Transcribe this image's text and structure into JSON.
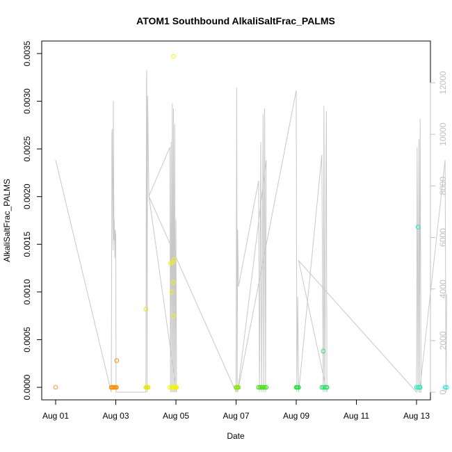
{
  "chart_data": {
    "type": "scatter",
    "title": "ATOM1 Southbound AlkaliSaltFrac_PALMS",
    "xlabel": "Date",
    "ylabel": "AlkaliSaltFrac_PALMS",
    "xlim": [
      "2016-08-01",
      "2016-08-13"
    ],
    "ylim": [
      0,
      0.0035
    ],
    "x_ticks": [
      "Aug 01",
      "Aug 03",
      "Aug 05",
      "Aug 07",
      "Aug 09",
      "Aug 11",
      "Aug 13"
    ],
    "y_ticks": [
      "0.0000",
      "0.0005",
      "0.0010",
      "0.0015",
      "0.0020",
      "0.0025",
      "0.0030",
      "0.0035"
    ],
    "y2_ticks": [
      "0",
      "2000",
      "4000",
      "6000",
      "8000",
      "10000",
      "12000"
    ],
    "y2lim": [
      0,
      12000
    ],
    "grid": false,
    "series": [
      {
        "role": "points",
        "x": [
          0.0,
          1.85,
          1.88,
          1.91,
          1.94,
          1.97,
          2.0,
          2.02,
          3.0,
          3.02,
          3.05,
          3.08,
          3.8,
          3.85,
          3.9,
          3.93,
          3.96,
          3.98,
          4.0,
          4.02,
          6.0,
          6.02,
          6.05,
          6.08,
          6.75,
          6.8,
          6.85,
          6.9,
          6.95,
          7.0,
          8.0,
          8.02,
          8.05,
          8.08,
          8.85,
          8.9,
          8.95,
          9.0,
          9.02,
          12.0,
          12.05,
          12.1,
          12.12,
          12.95,
          13.0,
          2.03,
          3.0,
          3.92,
          3.82,
          3.95,
          3.88,
          3.86,
          3.91,
          3.93,
          8.9,
          12.05
        ],
        "y": [
          0,
          0,
          0,
          0,
          0,
          0,
          0,
          0,
          0,
          0,
          0,
          0,
          0,
          0,
          0,
          0,
          0,
          0,
          0,
          0,
          0,
          0,
          0,
          0,
          0,
          0,
          0,
          0,
          0,
          0,
          0,
          0,
          0,
          0,
          0,
          0,
          0,
          0,
          0,
          0,
          0,
          0,
          0,
          0,
          0,
          0.00028,
          0.00082,
          0.00347,
          0.0013,
          0.00134,
          0.00131,
          0.001,
          0.0011,
          0.00075,
          0.00038,
          0.00168
        ]
      },
      {
        "role": "secondary-line",
        "axis": "right",
        "x": [
          0.0,
          1.85,
          1.86,
          1.87,
          1.88,
          1.9,
          1.91,
          1.92,
          1.94,
          1.95,
          1.97,
          1.98,
          2.0,
          2.01,
          3.0,
          3.02,
          3.03,
          3.04,
          3.06,
          3.1,
          3.8,
          3.82,
          3.84,
          3.86,
          3.88,
          3.9,
          3.92,
          3.94,
          3.96,
          3.98,
          4.0,
          4.02,
          3.1,
          6.0,
          6.02,
          6.04,
          6.05,
          6.08,
          6.75,
          6.78,
          6.82,
          6.85,
          6.9,
          6.92,
          6.95,
          6.98,
          7.0,
          6.05,
          8.0,
          8.02,
          8.05,
          8.08,
          8.85,
          8.9,
          8.92,
          8.95,
          9.0,
          9.02,
          8.08,
          12.0,
          12.02,
          12.05,
          12.08,
          12.1,
          12.12,
          12.15,
          12.1,
          12.95,
          12.98,
          13.0
        ],
        "y": [
          9000,
          0,
          3200,
          10000,
          10200,
          6500,
          5500,
          11300,
          5900,
          6700,
          5200,
          6300,
          6100,
          0,
          0,
          11800,
          12500,
          0,
          11500,
          7600,
          9500,
          0,
          9700,
          0,
          11200,
          0,
          11000,
          0,
          10400,
          0,
          6700,
          0,
          7600,
          0,
          11800,
          0,
          6300,
          4100,
          8200,
          0,
          9700,
          0,
          10800,
          0,
          11000,
          0,
          9000,
          0,
          11700,
          0,
          3700,
          0,
          9200,
          0,
          11100,
          0,
          10900,
          0,
          5100,
          0,
          9500,
          0,
          9800,
          0,
          10600,
          0,
          0,
          9000,
          0,
          3800
        ]
      }
    ],
    "point_colors": {
      "Aug 01": "#f39a3a",
      "Aug 02": "#ff8c00",
      "Aug 03": "#e8e800",
      "Aug 04": "#f5f500",
      "Aug 06": "#7fe800",
      "Aug 07": "#33e800",
      "Aug 08": "#1fe033",
      "Aug 09": "#1ae560",
      "Aug 12": "#20e8b0",
      "Aug 13": "#1ee8d0"
    },
    "line_color": "#c8c8c8"
  }
}
